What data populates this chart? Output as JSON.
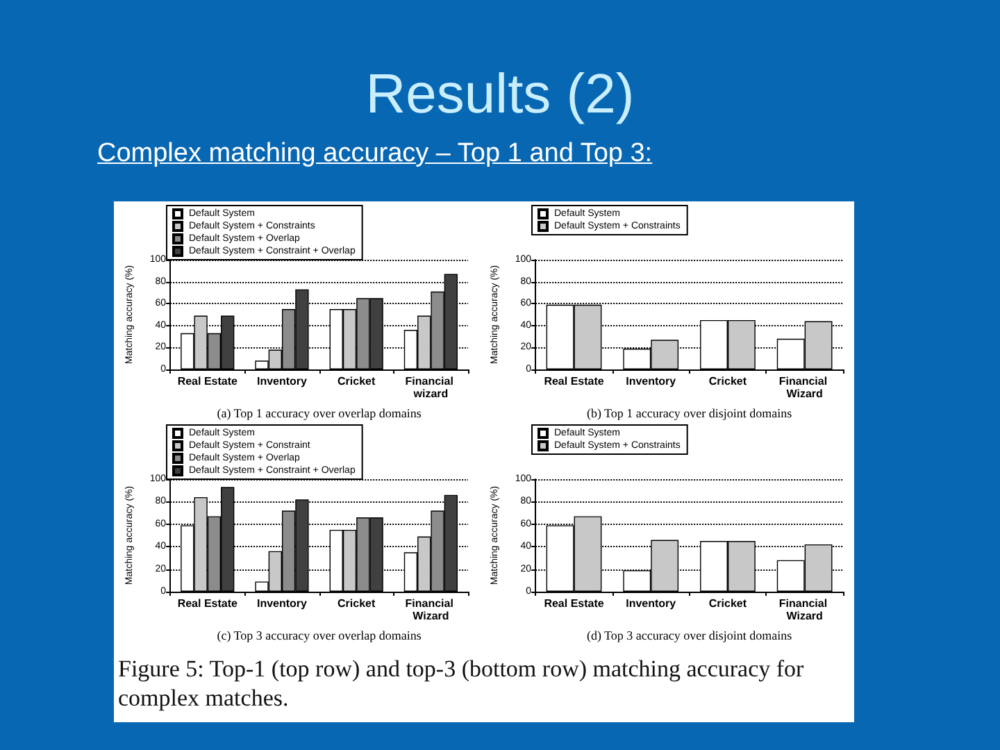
{
  "chart_data": [
    {
      "type": "bar",
      "title": "Results (2)",
      "subtitle": "Complex matching accuracy – Top 1 and Top 3:",
      "xlabel": "(a) Top 1 accuracy over overlap domains",
      "ylabel": "Matching accuracy (%)",
      "categories": [
        "Real Estate",
        "Inventory",
        "Cricket",
        "Financial wizard"
      ],
      "series": [
        {
          "name": "Default System",
          "color": "#ffffff",
          "values": [
            33,
            8,
            55,
            36
          ]
        },
        {
          "name": "Default System + Constraints",
          "color": "#c8c8c8",
          "values": [
            49,
            18,
            55,
            49
          ]
        },
        {
          "name": "Default System + Overlap",
          "color": "#8c8c8c",
          "values": [
            33,
            55,
            65,
            71
          ]
        },
        {
          "name": "Default System + Constraint + Overlap",
          "color": "#404040",
          "values": [
            49,
            73,
            65,
            87
          ]
        }
      ],
      "ylim": [
        0,
        100
      ],
      "yticks": [
        0,
        20,
        40,
        60,
        80,
        100
      ],
      "grid": "y",
      "legend": "top left"
    },
    {
      "type": "bar",
      "xlabel": "(b) Top 1 accuracy over disjoint domains",
      "ylabel": "Matching accuracy (%)",
      "categories": [
        "Real Estate",
        "Inventory",
        "Cricket",
        "Financial Wizard"
      ],
      "series": [
        {
          "name": "Default System",
          "color": "#ffffff",
          "values": [
            59,
            19,
            45,
            28
          ]
        },
        {
          "name": "Default System + Constraints",
          "color": "#c8c8c8",
          "values": [
            59,
            27,
            45,
            44
          ]
        }
      ],
      "ylim": [
        0,
        100
      ],
      "yticks": [
        0,
        20,
        40,
        60,
        80,
        100
      ],
      "grid": "y",
      "legend": "top left"
    },
    {
      "type": "bar",
      "xlabel": "(c) Top 3 accuracy over overlap domains",
      "ylabel": "Matching accuracy (%)",
      "categories": [
        "Real Estate",
        "Inventory",
        "Cricket",
        "Financial Wizard"
      ],
      "series": [
        {
          "name": "Default System",
          "color": "#ffffff",
          "values": [
            59,
            9,
            55,
            35
          ]
        },
        {
          "name": "Default System + Constraint",
          "color": "#c8c8c8",
          "values": [
            84,
            36,
            55,
            49
          ]
        },
        {
          "name": "Default System + Overlap",
          "color": "#8c8c8c",
          "values": [
            67,
            72,
            66,
            72
          ]
        },
        {
          "name": "Default System + Constraint + Overlap",
          "color": "#404040",
          "values": [
            93,
            82,
            66,
            86
          ]
        }
      ],
      "ylim": [
        0,
        100
      ],
      "yticks": [
        0,
        20,
        40,
        60,
        80,
        100
      ],
      "grid": "y",
      "legend": "top left"
    },
    {
      "type": "bar",
      "xlabel": "(d) Top 3 accuracy over disjoint domains",
      "ylabel": "Matching accuracy (%)",
      "categories": [
        "Real Estate",
        "Inventory",
        "Cricket",
        "Financial Wizard"
      ],
      "series": [
        {
          "name": "Default System",
          "color": "#ffffff",
          "values": [
            59,
            19,
            45,
            28
          ]
        },
        {
          "name": "Default System + Constraints",
          "color": "#c8c8c8",
          "values": [
            67,
            46,
            45,
            42
          ]
        }
      ],
      "ylim": [
        0,
        100
      ],
      "yticks": [
        0,
        20,
        40,
        60,
        80,
        100
      ],
      "grid": "y",
      "legend": "top left",
      "annotations": [
        "Figure 5: Top-1 (top row) and top-3 (bottom row) matching accuracy for complex matches."
      ]
    }
  ]
}
